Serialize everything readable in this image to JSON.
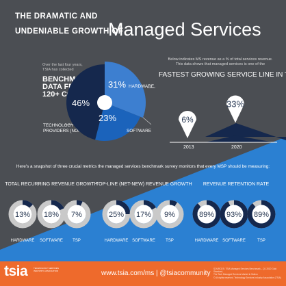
{
  "title": {
    "line1": "THE DRAMATIC AND",
    "line2": "UNDENIABLE GROWTH OF",
    "main": "Managed Services"
  },
  "benchmark": {
    "intro_line1": "Over the last four years,",
    "intro_line2": "TSIA has collected",
    "heading_line1": "BENCHMARK",
    "heading_line2": "DATA FROM",
    "heading_line3": "120+ COMPANIES",
    "providers_line1": "TECHNOLOGY SERVICES",
    "providers_line2": "PROVIDERS (NON-OEM)",
    "hardware_label": "HARDWARE",
    "software_label": "SOFTWARE"
  },
  "pie": {
    "slices": [
      {
        "label": "31%",
        "value": 31,
        "segment": "hardware",
        "color": "#3d7fd0"
      },
      {
        "label": "23%",
        "value": 23,
        "segment": "software",
        "color": "#1b63bb"
      },
      {
        "label": "46%",
        "value": 46,
        "segment": "technology services providers",
        "color": "#15284d"
      }
    ]
  },
  "growth": {
    "note_line1": "Below indicates MS revenue as a % of total services revenue.",
    "note_line2": "This data shows that managed services is one of the",
    "heading": "FASTEST GROWING SERVICE LINE IN TECH",
    "points": [
      {
        "year": "2013",
        "label": "6%",
        "value": 6
      },
      {
        "year": "2020",
        "label": "33%",
        "value": 33
      }
    ]
  },
  "snapshot": "Here's a snapshot of three crucial metrics the managed services benchmark survey monitors that every MSP should be measuring:",
  "metrics": [
    {
      "title": "TOTAL RECURRING REVENUE GROWTH",
      "rings": [
        {
          "label": "13%",
          "value": 13,
          "segment": "HARDWARE"
        },
        {
          "label": "18%",
          "value": 18,
          "segment": "SOFTWARE"
        },
        {
          "label": "7%",
          "value": 7,
          "segment": "TSP"
        }
      ]
    },
    {
      "title": "TOP-LINE (NET-NEW) REVENUE GROWTH",
      "rings": [
        {
          "label": "25%",
          "value": 25,
          "segment": "HARDWARE"
        },
        {
          "label": "17%",
          "value": 17,
          "segment": "SOFTWARE"
        },
        {
          "label": "9%",
          "value": 9,
          "segment": "TSP"
        }
      ]
    },
    {
      "title": "REVENUE RETENTION RATE",
      "rings": [
        {
          "label": "89%",
          "value": 89,
          "segment": "HARDWARE"
        },
        {
          "label": "93%",
          "value": 93,
          "segment": "SOFTWARE"
        },
        {
          "label": "89%",
          "value": 89,
          "segment": "TSP"
        }
      ]
    }
  ],
  "footer": {
    "logo": "tsia",
    "logo_tagline": "TECHNOLOGY SERVICES INDUSTRY ASSOCIATION",
    "url": "www.tsia.com/ms | @tsiacommunity",
    "source_line1": "SOURCES: TSIA Managed Services Benchmark – Q1 2020 Gold Standard,",
    "source_line2": "The Tech Managed Services Market in Motion",
    "source_line3": "© All rights reserved. Technology Services Industry Association (TSIA)"
  },
  "colors": {
    "background": "#4b4e53",
    "accent_blue": "#2b80d2",
    "dark_navy": "#15284d",
    "footer_orange": "#ee6a2c"
  }
}
